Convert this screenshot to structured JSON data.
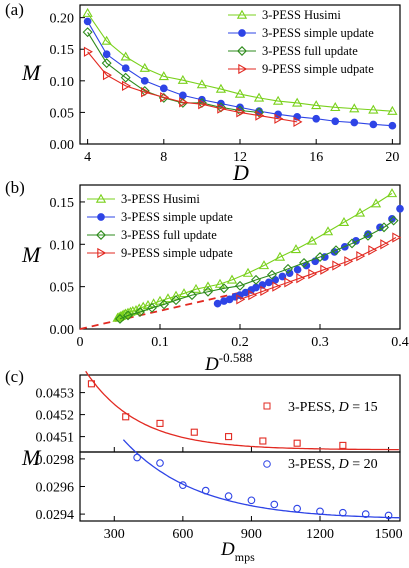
{
  "colors": {
    "green": "#7ad11c",
    "blue": "#2e44e6",
    "darkgreen": "#2e8b1c",
    "red": "#e22a22"
  },
  "chart_data": [
    {
      "panel_label": "(a)",
      "type": "line",
      "xlabel": "D",
      "ylabel": "M",
      "xlim": [
        3.6,
        20.4
      ],
      "ylim": [
        0.0,
        0.22
      ],
      "xticks": [
        "4",
        "8",
        "12",
        "16",
        "20"
      ],
      "yticks": [
        "0.00",
        "0.05",
        "0.10",
        "0.15",
        "0.20"
      ],
      "legend_position": "top-right",
      "series": [
        {
          "name": "3-PESS Husimi",
          "color": "green",
          "marker": "triangle-up",
          "filled": false,
          "x": [
            4,
            5,
            6,
            7,
            8,
            9,
            10,
            11,
            12,
            13,
            14,
            15,
            16,
            17,
            18,
            19,
            20
          ],
          "y": [
            0.207,
            0.163,
            0.138,
            0.12,
            0.107,
            0.101,
            0.094,
            0.087,
            0.079,
            0.073,
            0.068,
            0.065,
            0.061,
            0.058,
            0.056,
            0.054,
            0.052
          ]
        },
        {
          "name": "3-PESS simple update",
          "color": "blue",
          "marker": "circle",
          "filled": true,
          "x": [
            4,
            5,
            6,
            7,
            8,
            9,
            10,
            11,
            12,
            13,
            14,
            15,
            16,
            17,
            18,
            19,
            20
          ],
          "y": [
            0.194,
            0.142,
            0.12,
            0.1,
            0.088,
            0.077,
            0.07,
            0.064,
            0.058,
            0.052,
            0.047,
            0.043,
            0.04,
            0.036,
            0.034,
            0.031,
            0.029
          ]
        },
        {
          "name": "3-PESS full update",
          "color": "darkgreen",
          "marker": "diamond",
          "filled": false,
          "x": [
            4,
            5,
            6,
            7,
            8,
            9,
            10,
            11,
            12,
            13
          ],
          "y": [
            0.177,
            0.128,
            0.105,
            0.084,
            0.073,
            0.065,
            0.065,
            0.058,
            0.053,
            0.05
          ]
        },
        {
          "name": "9-PESS simple udpate",
          "color": "red",
          "marker": "triangle-right",
          "filled": false,
          "x": [
            4,
            5,
            6,
            7,
            8,
            9,
            10,
            11,
            12,
            13,
            14,
            15
          ],
          "y": [
            0.146,
            0.109,
            0.092,
            0.082,
            0.074,
            0.066,
            0.063,
            0.056,
            0.05,
            0.045,
            0.04,
            0.035
          ]
        }
      ]
    },
    {
      "panel_label": "(b)",
      "type": "scatter",
      "xlabel": "D",
      "xlabel_superscript": "-0.588",
      "ylabel": "M",
      "xlim": [
        0.0,
        0.4
      ],
      "ylim": [
        0.0,
        0.17
      ],
      "xticks": [
        "0",
        "0.1",
        "0.2",
        "0.3",
        "0.4"
      ],
      "yticks": [
        "0.00",
        "0.05",
        "0.10",
        "0.15"
      ],
      "legend_position": "top-left",
      "series": [
        {
          "name": "3-PESS Husimi",
          "color": "green",
          "marker": "triangle-up",
          "filled": false,
          "x": [
            0.047,
            0.049,
            0.051,
            0.053,
            0.055,
            0.057,
            0.06,
            0.063,
            0.066,
            0.07,
            0.074,
            0.079,
            0.085,
            0.092,
            0.1,
            0.11,
            0.12,
            0.13,
            0.145,
            0.16,
            0.175,
            0.19,
            0.21,
            0.23,
            0.25,
            0.27,
            0.29,
            0.31,
            0.33,
            0.35,
            0.37,
            0.39
          ],
          "y": [
            0.013,
            0.014,
            0.015,
            0.016,
            0.017,
            0.018,
            0.019,
            0.02,
            0.021,
            0.022,
            0.024,
            0.026,
            0.028,
            0.03,
            0.033,
            0.036,
            0.039,
            0.042,
            0.047,
            0.05,
            0.053,
            0.058,
            0.066,
            0.075,
            0.085,
            0.094,
            0.104,
            0.115,
            0.126,
            0.137,
            0.148,
            0.16
          ]
        },
        {
          "name": "3-PESS simple update",
          "color": "blue",
          "marker": "circle",
          "filled": true,
          "x": [
            0.172,
            0.18,
            0.187,
            0.194,
            0.2,
            0.207,
            0.214,
            0.22,
            0.228,
            0.236,
            0.244,
            0.253,
            0.262,
            0.272,
            0.283,
            0.294,
            0.306,
            0.318,
            0.331,
            0.345,
            0.36,
            0.375,
            0.39,
            0.4
          ],
          "y": [
            0.03,
            0.033,
            0.035,
            0.038,
            0.04,
            0.043,
            0.046,
            0.049,
            0.052,
            0.055,
            0.058,
            0.062,
            0.066,
            0.07,
            0.075,
            0.08,
            0.085,
            0.091,
            0.097,
            0.104,
            0.112,
            0.12,
            0.13,
            0.142
          ]
        },
        {
          "name": "3-PESS full update",
          "color": "darkgreen",
          "marker": "diamond",
          "filled": false,
          "x": [
            0.05,
            0.06,
            0.075,
            0.09,
            0.105,
            0.12,
            0.14,
            0.16,
            0.18,
            0.2,
            0.22,
            0.24,
            0.26,
            0.28,
            0.3,
            0.32,
            0.34,
            0.36,
            0.38,
            0.392
          ],
          "y": [
            0.012,
            0.016,
            0.02,
            0.025,
            0.029,
            0.034,
            0.04,
            0.044,
            0.048,
            0.051,
            0.058,
            0.064,
            0.071,
            0.078,
            0.085,
            0.093,
            0.101,
            0.11,
            0.12,
            0.128
          ]
        },
        {
          "name": "9-PESS simple udpate",
          "color": "red",
          "marker": "triangle-right",
          "filled": false,
          "x": [
            0.2,
            0.215,
            0.23,
            0.245,
            0.26,
            0.275,
            0.29,
            0.305,
            0.32,
            0.335,
            0.35,
            0.365,
            0.38,
            0.395
          ],
          "y": [
            0.035,
            0.04,
            0.045,
            0.05,
            0.055,
            0.06,
            0.065,
            0.07,
            0.075,
            0.08,
            0.086,
            0.093,
            0.1,
            0.108
          ]
        }
      ]
    },
    {
      "panel_label": "(c)",
      "type": "scatter",
      "xlabel": "D",
      "xlabel_subscript": "mps",
      "ylabel": "M",
      "xlim": [
        150,
        1550
      ],
      "xticks": [
        "300",
        "600",
        "900",
        "1200",
        "1500"
      ],
      "subplots": [
        {
          "name": "3-PESS, D = 15",
          "legend_text": "3-PESS, ",
          "legend_d_value": "15",
          "color": "red",
          "marker": "square",
          "ylim": [
            0.04503,
            0.04538
          ],
          "yticks": [
            "0.0451",
            "0.0452",
            "0.0453"
          ],
          "x": [
            200,
            350,
            500,
            650,
            800,
            950,
            1100,
            1300
          ],
          "y": [
            0.04534,
            0.04519,
            0.04516,
            0.04512,
            0.0451,
            0.04508,
            0.04507,
            0.04506
          ]
        },
        {
          "name": "3-PESS, D = 20",
          "legend_text": "3-PESS, ",
          "legend_d_value": "20",
          "color": "blue",
          "marker": "circle",
          "ylim": [
            0.02935,
            0.02985
          ],
          "yticks": [
            "0.0294",
            "0.0296",
            "0.0298"
          ],
          "x": [
            400,
            500,
            600,
            700,
            800,
            900,
            1000,
            1100,
            1200,
            1300,
            1400,
            1500
          ],
          "y": [
            0.02981,
            0.02977,
            0.02961,
            0.02957,
            0.02953,
            0.0295,
            0.02947,
            0.02944,
            0.02942,
            0.02941,
            0.0294,
            0.02939
          ]
        }
      ]
    }
  ]
}
